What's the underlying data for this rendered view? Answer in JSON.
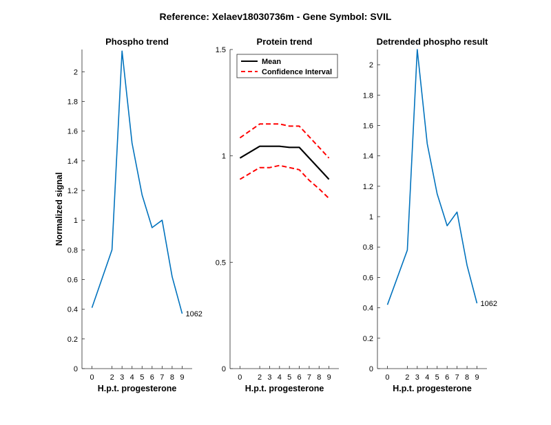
{
  "figure": {
    "suptitle": "Reference:  Xelaev18030736m - Gene Symbol:  SVIL"
  },
  "chart_data": [
    {
      "type": "line",
      "title": "Phospho trend",
      "xlabel": "H.p.t. progesterone",
      "ylabel": "Normalized signal",
      "xlim": [
        -1,
        10
      ],
      "ylim": [
        0,
        2.15
      ],
      "xticks": [
        0,
        2,
        3,
        4,
        5,
        6,
        7,
        8,
        9
      ],
      "yticks": [
        0,
        0.2,
        0.4,
        0.6,
        0.8,
        1,
        1.2,
        1.4,
        1.6,
        1.8,
        2
      ],
      "ytick_labels": [
        "0",
        "0.2",
        "0.4",
        "0.6",
        "0.8",
        "1",
        "1.2",
        "1.4",
        "1.6",
        "1.8",
        "2"
      ],
      "series": [
        {
          "color": "#0072BD",
          "dash": "solid",
          "x": [
            0,
            2,
            3,
            4,
            5,
            6,
            7,
            8,
            9
          ],
          "y": [
            0.41,
            0.8,
            2.14,
            1.52,
            1.17,
            0.95,
            1.0,
            0.62,
            0.37
          ]
        }
      ],
      "annotation": {
        "text": "1062",
        "x": 9,
        "y": 0.37
      }
    },
    {
      "type": "line",
      "title": "Protein trend",
      "xlabel": "H.p.t. progesterone",
      "ylabel": "",
      "xlim": [
        -1,
        10
      ],
      "ylim": [
        0,
        1.5
      ],
      "xticks": [
        0,
        2,
        3,
        4,
        5,
        6,
        7,
        8,
        9
      ],
      "yticks": [
        0,
        0.5,
        1,
        1.5
      ],
      "ytick_labels": [
        "0",
        "0.5",
        "1",
        "1.5"
      ],
      "series": [
        {
          "name": "Mean",
          "color": "#000000",
          "dash": "solid",
          "x": [
            0,
            2,
            3,
            4,
            5,
            6,
            7,
            8,
            9
          ],
          "y": [
            0.99,
            1.045,
            1.045,
            1.045,
            1.04,
            1.04,
            0.99,
            0.94,
            0.89
          ]
        },
        {
          "name": "Confidence Interval",
          "color": "#FF0000",
          "dash": "dashed",
          "x": [
            0,
            2,
            3,
            4,
            5,
            6,
            7,
            8,
            9
          ],
          "y": [
            1.085,
            1.15,
            1.15,
            1.15,
            1.14,
            1.14,
            1.09,
            1.04,
            0.99
          ]
        },
        {
          "color": "#FF0000",
          "dash": "dashed",
          "x": [
            0,
            2,
            3,
            4,
            5,
            6,
            7,
            8,
            9
          ],
          "y": [
            0.89,
            0.945,
            0.945,
            0.955,
            0.945,
            0.935,
            0.885,
            0.845,
            0.8
          ]
        }
      ],
      "legend": {
        "position": "top-left",
        "entries": [
          "Mean",
          "Confidence Interval"
        ]
      }
    },
    {
      "type": "line",
      "title": "Detrended phospho result",
      "xlabel": "H.p.t. progesterone",
      "ylabel": "",
      "xlim": [
        -1,
        10
      ],
      "ylim": [
        0,
        2.1
      ],
      "xticks": [
        0,
        2,
        3,
        4,
        5,
        6,
        7,
        8,
        9
      ],
      "yticks": [
        0,
        0.2,
        0.4,
        0.6,
        0.8,
        1,
        1.2,
        1.4,
        1.6,
        1.8,
        2
      ],
      "ytick_labels": [
        "0",
        "0.2",
        "0.4",
        "0.6",
        "0.8",
        "1",
        "1.2",
        "1.4",
        "1.6",
        "1.8",
        "2"
      ],
      "series": [
        {
          "color": "#0072BD",
          "dash": "solid",
          "x": [
            0,
            2,
            3,
            4,
            5,
            6,
            7,
            8,
            9
          ],
          "y": [
            0.42,
            0.78,
            2.1,
            1.48,
            1.15,
            0.94,
            1.03,
            0.68,
            0.43
          ]
        }
      ],
      "annotation": {
        "text": "1062",
        "x": 9,
        "y": 0.43
      }
    }
  ]
}
